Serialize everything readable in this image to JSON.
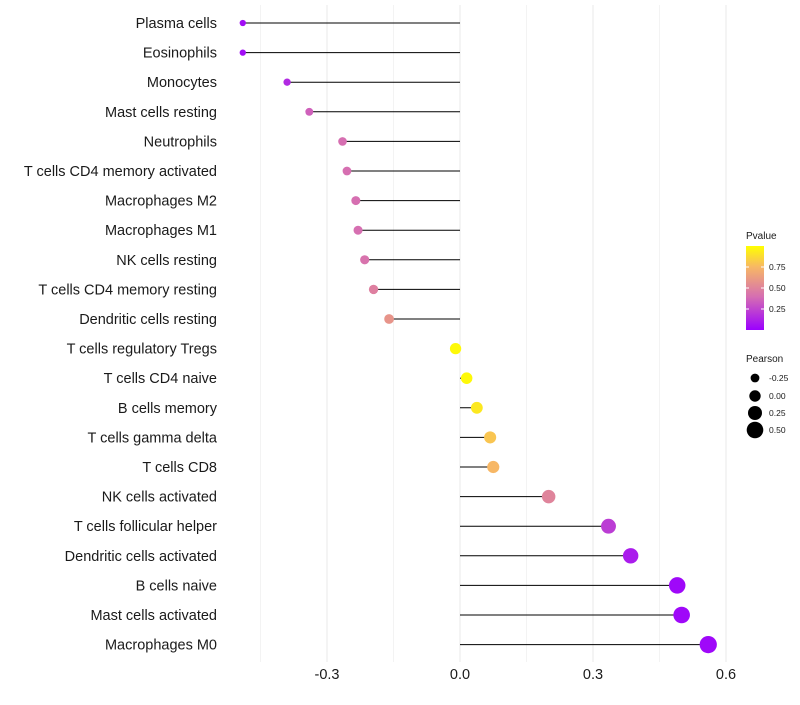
{
  "chart_data": {
    "type": "lollipop",
    "title": "",
    "xlabel": "",
    "ylabel": "",
    "xlim": [
      -0.45,
      0.62
    ],
    "x_ticks": [
      -0.3,
      0.0,
      0.3,
      0.6
    ],
    "x_tick_labels": [
      "-0.3",
      "0.0",
      "0.3",
      "0.6"
    ],
    "grid": true,
    "categories": [
      "Plasma cells",
      "Eosinophils",
      "Monocytes",
      "Mast cells resting",
      "Neutrophils",
      "T cells CD4 memory activated",
      "Macrophages M2",
      "Macrophages M1",
      "NK cells resting",
      "T cells CD4 memory resting",
      "Dendritic cells resting",
      "T cells regulatory  Tregs ",
      "T cells CD4 naive",
      "B cells memory",
      "T cells gamma delta",
      "T cells CD8",
      "NK cells activated",
      "T cells follicular helper",
      "Dendritic cells activated",
      "B cells naive",
      "Mast cells activated",
      "Macrophages M0"
    ],
    "pearson": [
      -0.49,
      -0.49,
      -0.39,
      -0.34,
      -0.265,
      -0.255,
      -0.235,
      -0.23,
      -0.215,
      -0.195,
      -0.16,
      -0.01,
      0.015,
      0.038,
      0.068,
      0.075,
      0.2,
      0.335,
      0.385,
      0.49,
      0.5,
      0.56
    ],
    "pvalue": [
      0.05,
      0.05,
      0.15,
      0.35,
      0.4,
      0.4,
      0.4,
      0.4,
      0.42,
      0.48,
      0.58,
      0.98,
      0.98,
      0.92,
      0.8,
      0.75,
      0.5,
      0.22,
      0.1,
      0.03,
      0.03,
      0.03
    ],
    "legend_pvalue": {
      "title": "Pvalue",
      "ticks": [
        "0.75",
        "0.50",
        "0.25"
      ],
      "tick_values": [
        0.75,
        0.5,
        0.25
      ],
      "range": [
        0.0,
        1.0
      ],
      "colors": [
        "#9b00ff",
        "#d66fb1",
        "#f7b765",
        "#ffff00"
      ]
    },
    "legend_pearson": {
      "title": "Pearson",
      "labels": [
        "-0.25",
        "0.00",
        "0.25",
        "0.50"
      ],
      "values": [
        -0.25,
        0.0,
        0.25,
        0.5
      ]
    },
    "stem_color": "#000000",
    "grid_color": "#ebebeb"
  }
}
